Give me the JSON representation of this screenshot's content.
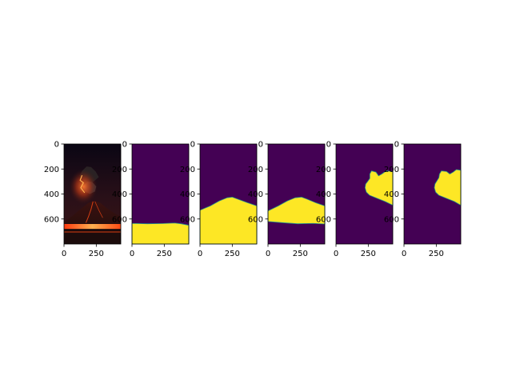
{
  "figure": {
    "background": "#ffffff"
  },
  "colors": {
    "mask_background": "#440154",
    "mask_foreground": "#fde725",
    "mask_edge": "#21918c",
    "sky_top": "#0a0614",
    "sky_glow": "#3a1414",
    "ash_dark": "#2a2224",
    "ash_light": "#5a4a46",
    "lava": "#ff4a14",
    "lava_bright": "#ffb050",
    "ground": "#1c0c0c"
  },
  "chart_data": [
    {
      "type": "image",
      "content": "volcano-photo",
      "x_ticks": [
        0,
        250
      ],
      "y_ticks": [
        0,
        200,
        400,
        600
      ],
      "xlim": [
        0,
        440
      ],
      "ylim": [
        800,
        0
      ]
    },
    {
      "type": "heatmap",
      "content": "mask",
      "x_ticks": [
        0,
        250
      ],
      "y_ticks": [
        0,
        200,
        400,
        600
      ],
      "xlim": [
        0,
        440
      ],
      "ylim": [
        800,
        0
      ],
      "mask_region": [
        [
          0,
          800
        ],
        [
          0,
          635
        ],
        [
          120,
          638
        ],
        [
          240,
          636
        ],
        [
          330,
          632
        ],
        [
          380,
          638
        ],
        [
          440,
          650
        ],
        [
          440,
          800
        ]
      ]
    },
    {
      "type": "heatmap",
      "content": "mask",
      "x_ticks": [
        0,
        250
      ],
      "y_ticks": [
        0,
        200,
        400,
        600
      ],
      "xlim": [
        0,
        440
      ],
      "ylim": [
        800,
        0
      ],
      "mask_region": [
        [
          0,
          800
        ],
        [
          0,
          530
        ],
        [
          80,
          495
        ],
        [
          150,
          455
        ],
        [
          210,
          430
        ],
        [
          250,
          425
        ],
        [
          290,
          440
        ],
        [
          370,
          470
        ],
        [
          440,
          495
        ],
        [
          440,
          800
        ]
      ]
    },
    {
      "type": "heatmap",
      "content": "mask",
      "x_ticks": [
        0,
        250
      ],
      "y_ticks": [
        0,
        200,
        400,
        600
      ],
      "xlim": [
        0,
        440
      ],
      "ylim": [
        800,
        0
      ],
      "mask_region": [
        [
          0,
          620
        ],
        [
          0,
          535
        ],
        [
          80,
          495
        ],
        [
          150,
          455
        ],
        [
          210,
          430
        ],
        [
          260,
          425
        ],
        [
          300,
          440
        ],
        [
          370,
          470
        ],
        [
          440,
          495
        ],
        [
          440,
          640
        ],
        [
          350,
          635
        ],
        [
          230,
          638
        ],
        [
          120,
          630
        ]
      ]
    },
    {
      "type": "heatmap",
      "content": "mask",
      "x_ticks": [
        0,
        250
      ],
      "y_ticks": [
        0,
        200,
        400,
        600
      ],
      "xlim": [
        0,
        440
      ],
      "ylim": [
        800,
        0
      ],
      "mask_region": [
        [
          440,
          220
        ],
        [
          390,
          215
        ],
        [
          355,
          240
        ],
        [
          330,
          255
        ],
        [
          310,
          225
        ],
        [
          275,
          215
        ],
        [
          262,
          240
        ],
        [
          262,
          275
        ],
        [
          245,
          300
        ],
        [
          230,
          320
        ],
        [
          225,
          350
        ],
        [
          235,
          385
        ],
        [
          260,
          410
        ],
        [
          320,
          435
        ],
        [
          380,
          460
        ],
        [
          440,
          490
        ]
      ]
    },
    {
      "type": "heatmap",
      "content": "mask",
      "x_ticks": [
        0,
        250
      ],
      "y_ticks": [
        0,
        200,
        400,
        600
      ],
      "xlim": [
        0,
        440
      ],
      "ylim": [
        800,
        0
      ],
      "mask_region": [
        [
          440,
          210
        ],
        [
          405,
          205
        ],
        [
          380,
          225
        ],
        [
          355,
          240
        ],
        [
          330,
          220
        ],
        [
          290,
          215
        ],
        [
          275,
          240
        ],
        [
          270,
          270
        ],
        [
          255,
          295
        ],
        [
          240,
          320
        ],
        [
          235,
          350
        ],
        [
          245,
          385
        ],
        [
          270,
          410
        ],
        [
          330,
          435
        ],
        [
          390,
          460
        ],
        [
          440,
          490
        ]
      ]
    }
  ]
}
